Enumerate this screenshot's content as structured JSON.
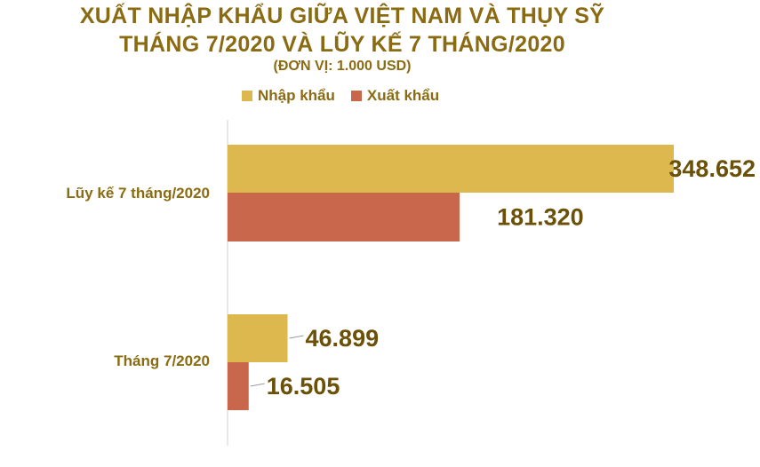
{
  "chart_data": {
    "type": "bar",
    "orientation": "horizontal",
    "title": "XUẤT NHẬP KHẨU GIỮA VIỆT NAM VÀ THỤY SỸ",
    "title_line2": "THÁNG 7/2020 VÀ LŨY KẾ 7 THÁNG/2020",
    "subtitle": "(ĐƠN VỊ: 1.000 USD)",
    "categories": [
      "Lũy kế 7 tháng/2020",
      "Tháng 7/2020"
    ],
    "series": [
      {
        "name": "Nhập khẩu",
        "color": "#dcb84f",
        "values": [
          348652,
          46899
        ],
        "labels": [
          "348.652",
          "46.899"
        ]
      },
      {
        "name": "Xuất khẩu",
        "color": "#c9674d",
        "values": [
          181320,
          16505
        ],
        "labels": [
          "181.320",
          "16.505"
        ]
      }
    ],
    "legend_position": "top",
    "grid": false,
    "xlim": [
      0,
      348652
    ]
  }
}
